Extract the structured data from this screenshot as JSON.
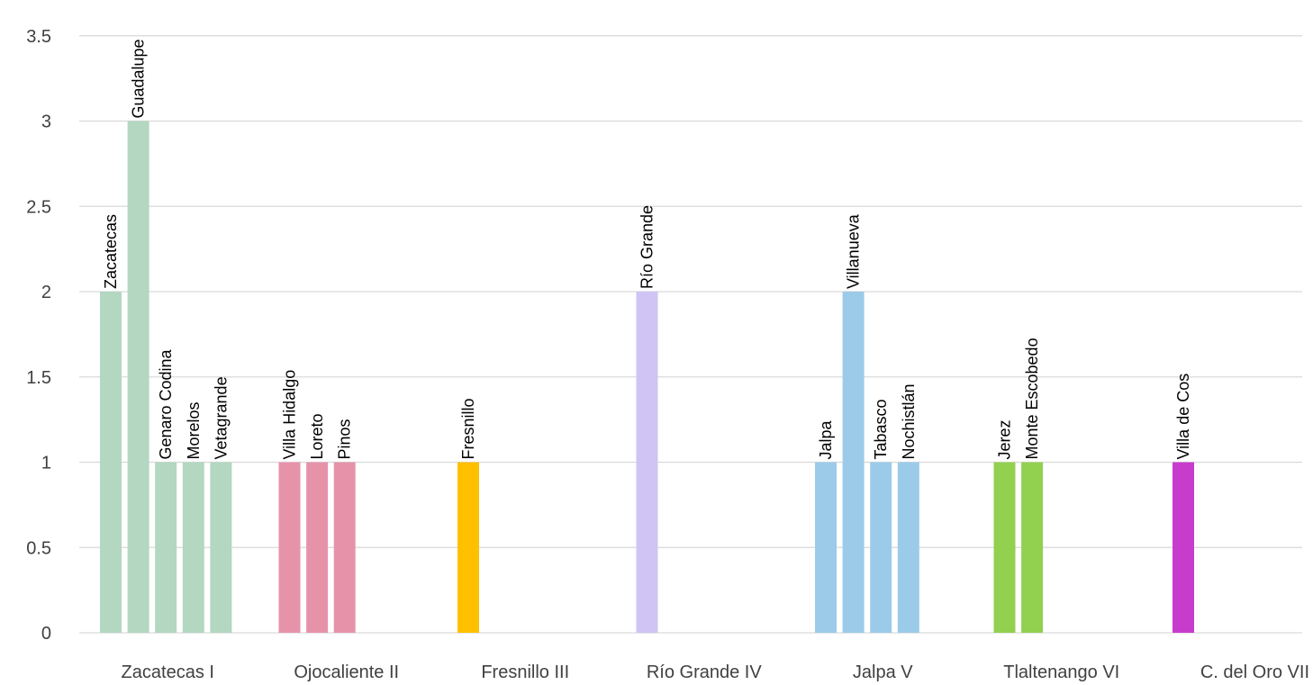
{
  "chart_data": {
    "type": "bar",
    "title": "",
    "xlabel": "",
    "ylabel": "",
    "ylim": [
      0,
      3.5
    ],
    "yticks": [
      0,
      0.5,
      1,
      1.5,
      2,
      2.5,
      3,
      3.5
    ],
    "ytick_labels": [
      "0",
      "0.5",
      "1",
      "1.5",
      "2",
      "2.5",
      "3",
      "3.5"
    ],
    "grid": true,
    "legend": "none",
    "groups": [
      {
        "category": "Zacatecas I",
        "color": "#b3d7c0",
        "bars": [
          {
            "label": "Zacatecas",
            "value": 2
          },
          {
            "label": "Guadalupe",
            "value": 3
          },
          {
            "label": "Genaro Codina",
            "value": 1
          },
          {
            "label": "Morelos",
            "value": 1
          },
          {
            "label": "Vetagrande",
            "value": 1
          }
        ]
      },
      {
        "category": "Ojocaliente II",
        "color": "#e693aa",
        "bars": [
          {
            "label": "Villa Hidalgo",
            "value": 1
          },
          {
            "label": "Loreto",
            "value": 1
          },
          {
            "label": "Pinos",
            "value": 1
          }
        ]
      },
      {
        "category": "Fresnillo  III",
        "color": "#ffc000",
        "bars": [
          {
            "label": "Fresnillo",
            "value": 1
          }
        ]
      },
      {
        "category": "Río Grande IV",
        "color": "#cfc4f3",
        "bars": [
          {
            "label": "Río Grande",
            "value": 2
          }
        ]
      },
      {
        "category": "Jalpa V",
        "color": "#9ccbe9",
        "bars": [
          {
            "label": "Jalpa",
            "value": 1
          },
          {
            "label": "Villanueva",
            "value": 2
          },
          {
            "label": "Tabasco",
            "value": 1
          },
          {
            "label": "Nochistlán",
            "value": 1
          }
        ]
      },
      {
        "category": "Tlaltenango VI",
        "color": "#92d050",
        "bars": [
          {
            "label": "Jerez",
            "value": 1
          },
          {
            "label": "Monte Escobedo",
            "value": 1
          }
        ]
      },
      {
        "category": "C. del Oro VII",
        "color": "#c83ccc",
        "bars": [
          {
            "label": "Villa de Cos",
            "value": 1
          }
        ]
      }
    ]
  }
}
